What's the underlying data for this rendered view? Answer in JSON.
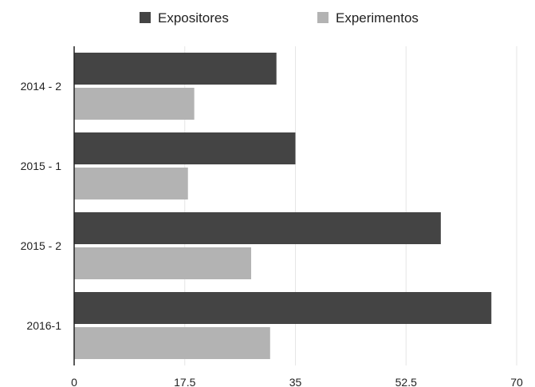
{
  "chart_data": {
    "type": "bar",
    "orientation": "horizontal",
    "categories": [
      "2014 - 2",
      "2015 - 1",
      "2015 - 2",
      "2016-1"
    ],
    "series": [
      {
        "name": "Expositores",
        "values": [
          32,
          35,
          58,
          66
        ],
        "color": "#444444"
      },
      {
        "name": "Experimentos",
        "values": [
          19,
          18,
          28,
          31
        ],
        "color": "#b3b3b3"
      }
    ],
    "xlim": [
      0,
      70
    ],
    "xticks": [
      "0",
      "17.5",
      "35",
      "52.5",
      "70"
    ],
    "grid": true,
    "legend": "top"
  }
}
